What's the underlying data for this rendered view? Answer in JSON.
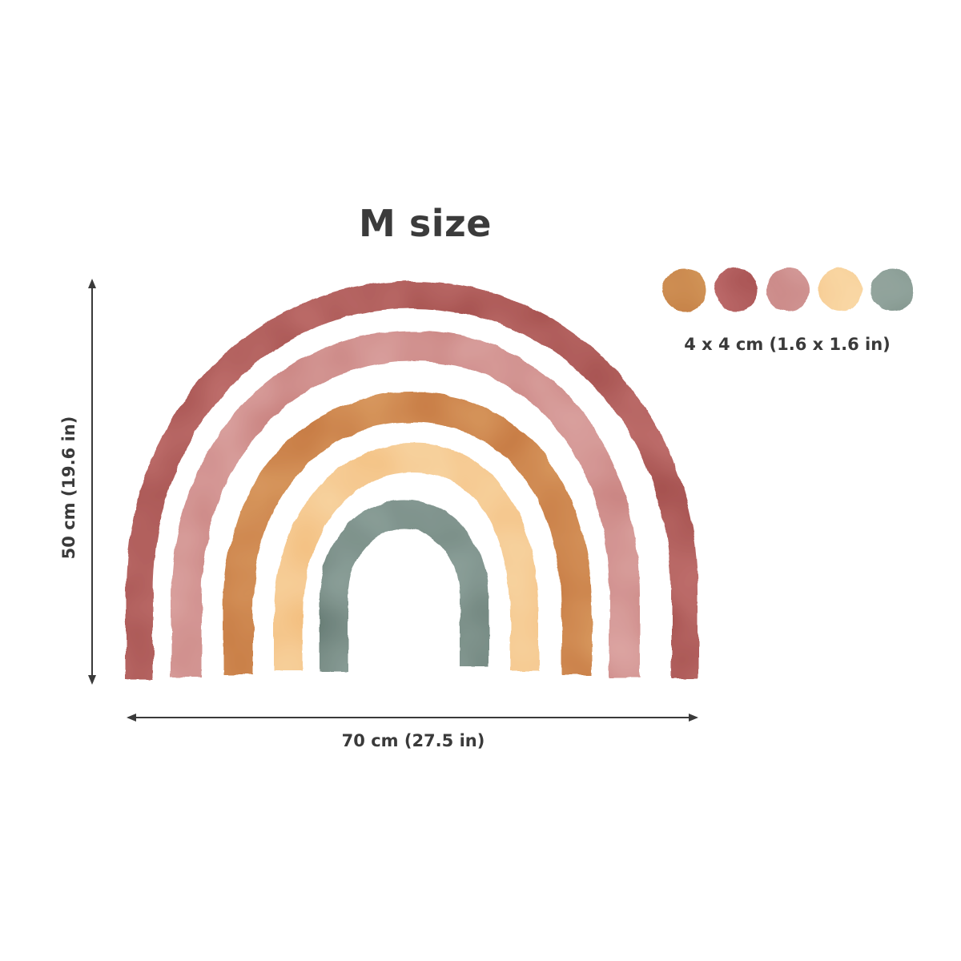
{
  "title": "M size",
  "dimensions": {
    "width_label": "70 cm (27.5 in)",
    "height_label": "50 cm (19.6 in)"
  },
  "rainbow": {
    "bands": [
      {
        "name": "outer",
        "color": "#bf6e6c"
      },
      {
        "name": "second",
        "color": "#dba3a0"
      },
      {
        "name": "middle",
        "color": "#d99a5e"
      },
      {
        "name": "fourth",
        "color": "#f8d5a3"
      },
      {
        "name": "inner",
        "color": "#8fa39c"
      }
    ]
  },
  "dots": {
    "size_label": "4 x 4 cm (1.6 x 1.6 in)",
    "colors": [
      "#d59a5c",
      "#c06d6d",
      "#dca7a6",
      "#f9d8a6",
      "#9aaca4"
    ]
  },
  "colors": {
    "text": "#3a3a3a",
    "arrow": "#3a3a3a",
    "background": "#ffffff"
  }
}
